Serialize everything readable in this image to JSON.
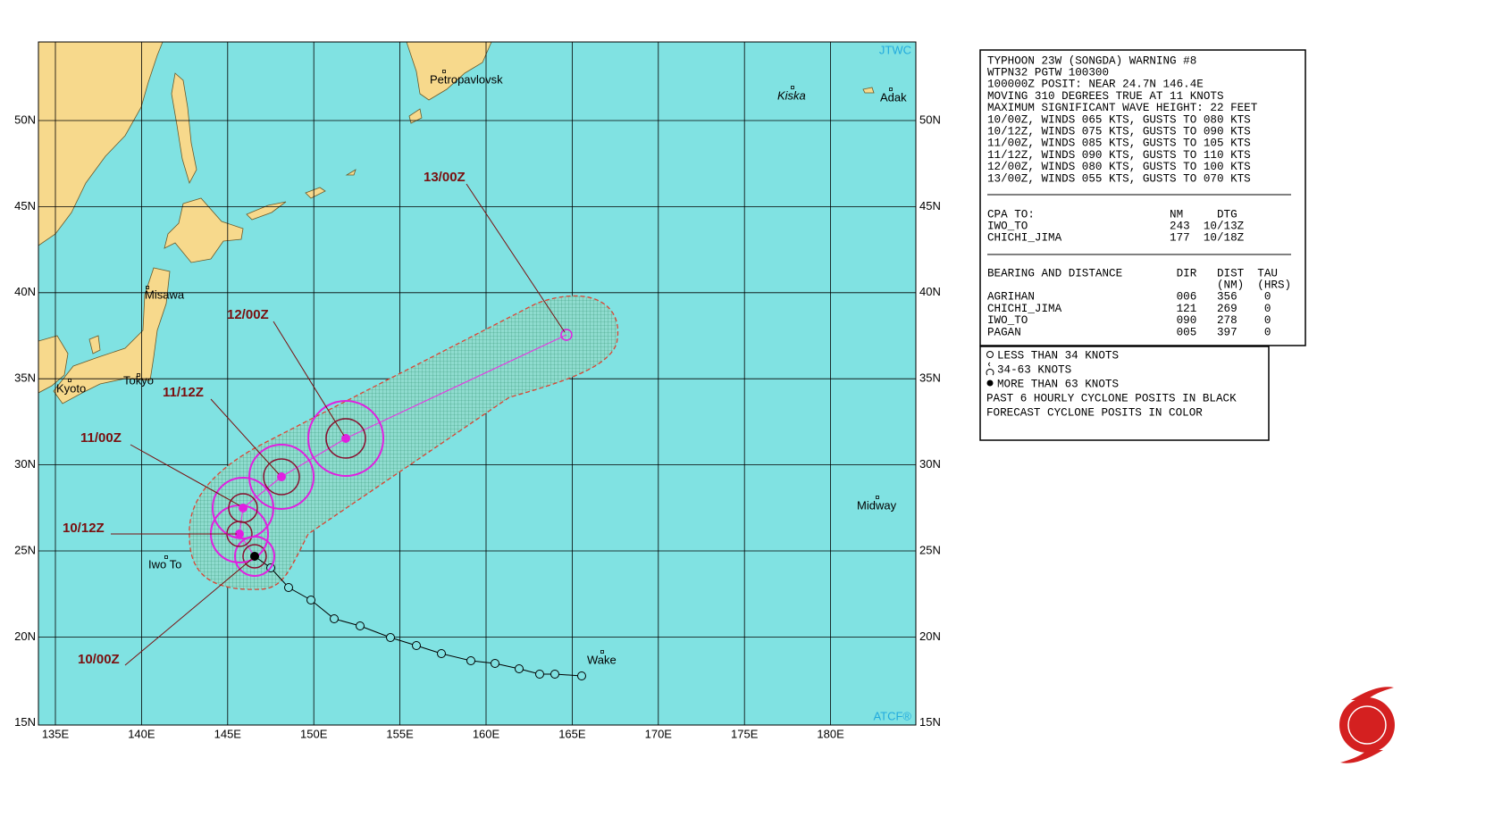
{
  "map": {
    "corner_top": "JTWC",
    "corner_bottom": "ATCF®",
    "lat_labels": [
      "50N",
      "45N",
      "40N",
      "35N",
      "30N",
      "25N",
      "20N",
      "15N"
    ],
    "lon_labels": [
      "135E",
      "140E",
      "145E",
      "150E",
      "155E",
      "160E",
      "165E",
      "170E",
      "175E",
      "180E"
    ],
    "places": [
      "Petropavlovsk",
      "Kiska",
      "Adak",
      "Misawa",
      "Tokyo",
      "Kyoto",
      "Iwo To",
      "Midway",
      "Wake"
    ],
    "forecast_labels": [
      "13/00Z",
      "12/00Z",
      "11/12Z",
      "11/00Z",
      "10/12Z",
      "10/00Z"
    ]
  },
  "warning": {
    "lines": [
      "TYPHOON 23W (SONGDA) WARNING #8",
      "WTPN32 PGTW 100300",
      "100000Z POSIT: NEAR 24.7N 146.4E",
      "MOVING 310 DEGREES TRUE AT 11 KNOTS",
      "MAXIMUM SIGNIFICANT WAVE HEIGHT: 22 FEET",
      "10/00Z, WINDS 065 KTS, GUSTS TO 080 KTS",
      "10/12Z, WINDS 075 KTS, GUSTS TO 090 KTS",
      "11/00Z, WINDS 085 KTS, GUSTS TO 105 KTS",
      "11/12Z, WINDS 090 KTS, GUSTS TO 110 KTS",
      "12/00Z, WINDS 080 KTS, GUSTS TO 100 KTS",
      "13/00Z, WINDS 055 KTS, GUSTS TO 070 KTS"
    ],
    "cpa_lines": [
      "CPA TO:                    NM     DTG",
      "IWO_TO                     243  10/13Z",
      "CHICHI_JIMA                177  10/18Z"
    ],
    "bearing_lines": [
      "BEARING AND DISTANCE        DIR   DIST  TAU",
      "                                  (NM)  (HRS)",
      "AGRIHAN                     006   356    0",
      "CHICHI_JIMA                 121   269    0",
      "IWO_TO                      090   278    0",
      "PAGAN                       005   397    0"
    ]
  },
  "legend": {
    "lines": [
      "LESS THAN 34 KNOTS",
      "34-63 KNOTS",
      "MORE THAN 63 KNOTS",
      "PAST 6 HOURLY CYCLONE POSITS IN BLACK",
      "FORECAST CYCLONE POSITS IN COLOR"
    ]
  }
}
